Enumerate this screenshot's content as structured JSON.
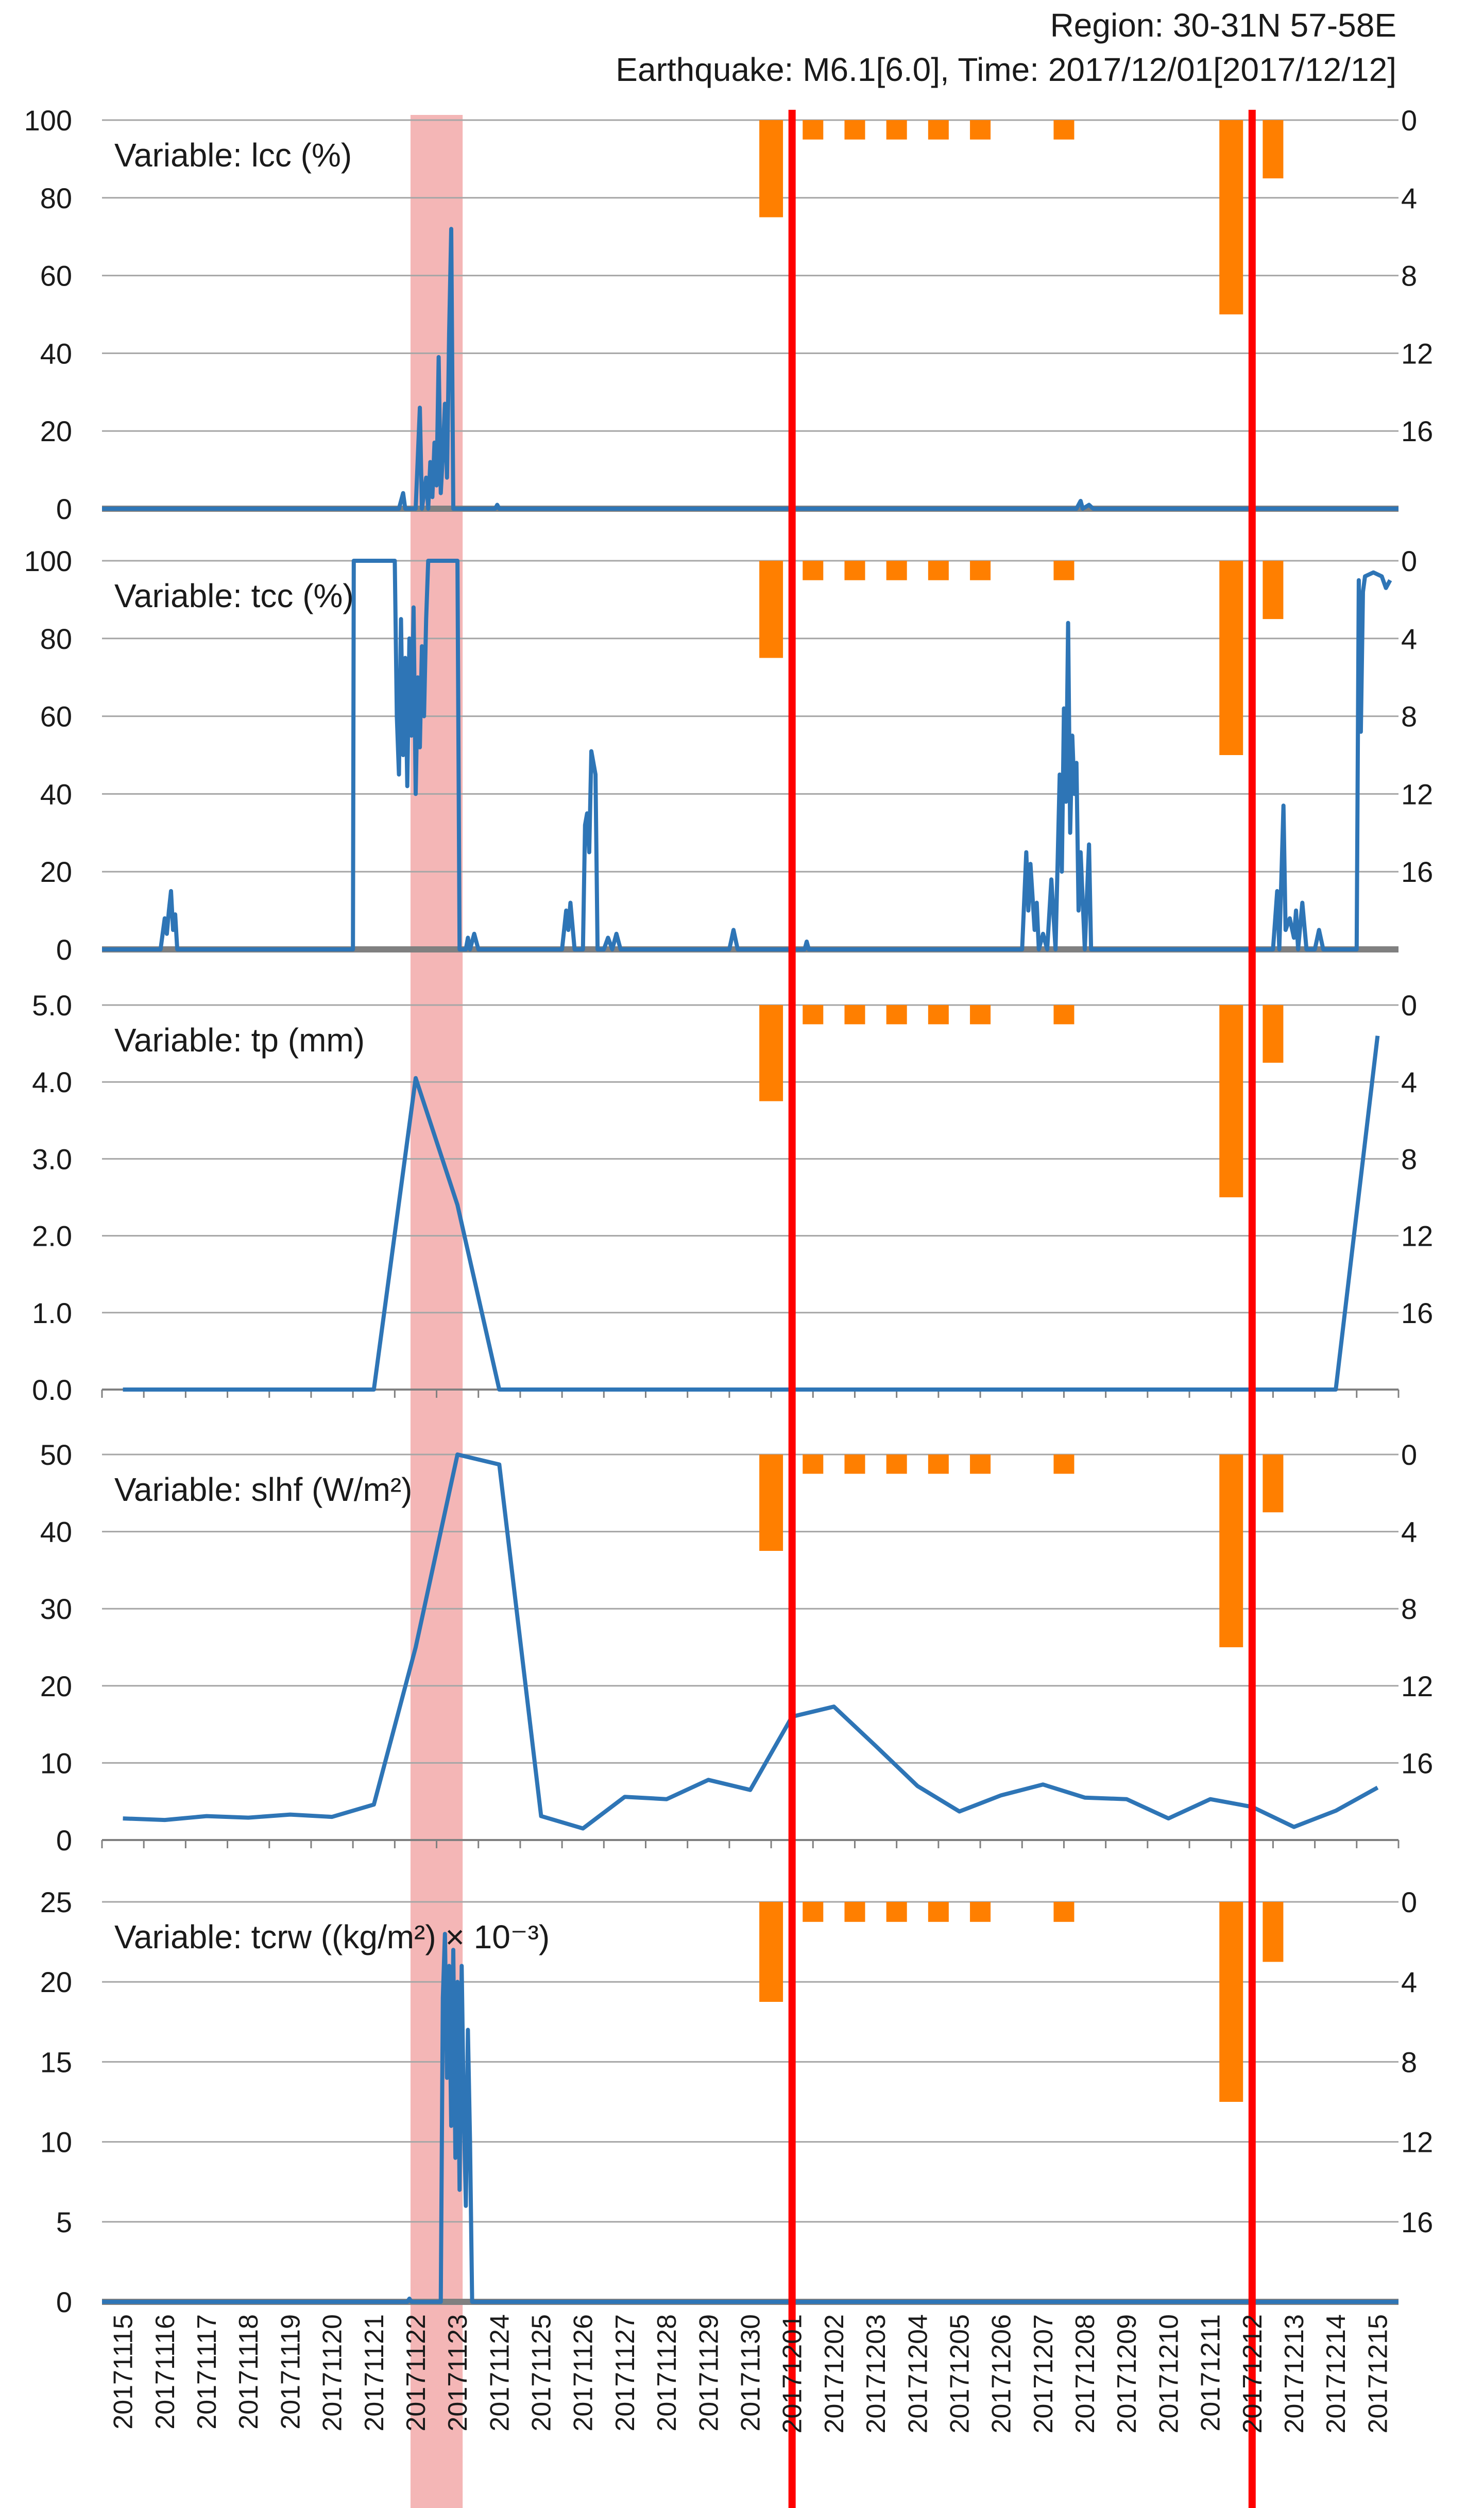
{
  "header": {
    "region": "Region: 30-31N 57-58E",
    "earthquake": "Earthquake: M6.1[6.0], Time: 2017/12/01[2017/12/12]"
  },
  "colors": {
    "line": "#2e75b6",
    "highlight": "#f4b6b6",
    "quake_line": "#ff0000",
    "bars": "#ff7f00",
    "grid": "#a6a6a6",
    "baseline": "#808080"
  },
  "chart_data": {
    "type": "line",
    "x_dates": [
      "20171115",
      "20171116",
      "20171117",
      "20171118",
      "20171119",
      "20171120",
      "20171121",
      "20171122",
      "20171123",
      "20171124",
      "20171125",
      "20171126",
      "20171127",
      "20171128",
      "20171129",
      "20171130",
      "20171201",
      "20171202",
      "20171203",
      "20171204",
      "20171205",
      "20171206",
      "20171207",
      "20171208",
      "20171209",
      "20171210",
      "20171211",
      "20171212",
      "20171213",
      "20171214",
      "20171215"
    ],
    "highlight_band": [
      "20171122",
      "20171123"
    ],
    "earthquake_dates": [
      "20171201",
      "20171212"
    ],
    "right_axis": {
      "ticks": [
        0,
        4,
        8,
        12,
        16
      ],
      "range": [
        20,
        0
      ]
    },
    "bars": [
      {
        "x": 16.0,
        "top": 0,
        "bottom": 5.0
      },
      {
        "x": 17.0,
        "top": 0,
        "bottom": 1.0
      },
      {
        "x": 18.0,
        "top": 0,
        "bottom": 1.0
      },
      {
        "x": 19.0,
        "top": 0,
        "bottom": 1.0
      },
      {
        "x": 20.0,
        "top": 0,
        "bottom": 1.0
      },
      {
        "x": 21.0,
        "top": 0,
        "bottom": 1.0
      },
      {
        "x": 23.0,
        "top": 0,
        "bottom": 1.0
      },
      {
        "x": 27.0,
        "top": 0,
        "bottom": 10.0
      },
      {
        "x": 28.0,
        "top": 0,
        "bottom": 3.0
      }
    ],
    "panels": [
      {
        "label": "Variable: lcc (%)",
        "ylim": [
          0,
          100
        ],
        "yticks": [
          "0",
          "20",
          "40",
          "60",
          "80",
          "100"
        ],
        "ytick_values": [
          0,
          20,
          40,
          60,
          80,
          100
        ],
        "series": [
          [
            0,
            0
          ],
          [
            7.1,
            0
          ],
          [
            7.2,
            4
          ],
          [
            7.25,
            0
          ],
          [
            7.5,
            0
          ],
          [
            7.6,
            26
          ],
          [
            7.65,
            0
          ],
          [
            7.75,
            8
          ],
          [
            7.8,
            0
          ],
          [
            7.85,
            12
          ],
          [
            7.9,
            3
          ],
          [
            7.95,
            17
          ],
          [
            8.0,
            6
          ],
          [
            8.05,
            39
          ],
          [
            8.1,
            4
          ],
          [
            8.15,
            14
          ],
          [
            8.2,
            27
          ],
          [
            8.25,
            8
          ],
          [
            8.3,
            45
          ],
          [
            8.35,
            72
          ],
          [
            8.4,
            0
          ],
          [
            9.4,
            0
          ],
          [
            9.45,
            1
          ],
          [
            9.5,
            0
          ],
          [
            23.3,
            0
          ],
          [
            23.4,
            2
          ],
          [
            23.45,
            0
          ],
          [
            23.6,
            1
          ],
          [
            23.7,
            0
          ],
          [
            31,
            0
          ]
        ]
      },
      {
        "label": "Variable: tcc (%)",
        "ylim": [
          0,
          100
        ],
        "yticks": [
          "0",
          "20",
          "40",
          "60",
          "80",
          "100"
        ],
        "ytick_values": [
          0,
          20,
          40,
          60,
          80,
          100
        ],
        "series": [
          [
            0,
            0
          ],
          [
            1.4,
            0
          ],
          [
            1.5,
            8
          ],
          [
            1.55,
            4
          ],
          [
            1.6,
            10
          ],
          [
            1.65,
            15
          ],
          [
            1.7,
            5
          ],
          [
            1.75,
            9
          ],
          [
            1.8,
            0
          ],
          [
            6.0,
            0
          ],
          [
            6.02,
            100
          ],
          [
            7.0,
            100
          ],
          [
            7.05,
            60
          ],
          [
            7.1,
            45
          ],
          [
            7.15,
            85
          ],
          [
            7.2,
            50
          ],
          [
            7.25,
            75
          ],
          [
            7.3,
            42
          ],
          [
            7.35,
            80
          ],
          [
            7.4,
            55
          ],
          [
            7.45,
            88
          ],
          [
            7.5,
            40
          ],
          [
            7.55,
            70
          ],
          [
            7.6,
            52
          ],
          [
            7.65,
            78
          ],
          [
            7.7,
            60
          ],
          [
            7.75,
            85
          ],
          [
            7.8,
            100
          ],
          [
            8.5,
            100
          ],
          [
            8.55,
            0
          ],
          [
            8.7,
            0
          ],
          [
            8.75,
            3
          ],
          [
            8.8,
            0
          ],
          [
            8.9,
            4
          ],
          [
            9.0,
            0
          ],
          [
            11.0,
            0
          ],
          [
            11.1,
            10
          ],
          [
            11.15,
            5
          ],
          [
            11.2,
            12
          ],
          [
            11.3,
            0
          ],
          [
            11.5,
            0
          ],
          [
            11.55,
            32
          ],
          [
            11.6,
            35
          ],
          [
            11.65,
            25
          ],
          [
            11.7,
            51
          ],
          [
            11.8,
            45
          ],
          [
            11.85,
            0
          ],
          [
            12.0,
            0
          ],
          [
            12.1,
            3
          ],
          [
            12.2,
            0
          ],
          [
            12.3,
            4
          ],
          [
            12.4,
            0
          ],
          [
            15.0,
            0
          ],
          [
            15.1,
            5
          ],
          [
            15.2,
            0
          ],
          [
            16.8,
            0
          ],
          [
            16.85,
            2
          ],
          [
            16.9,
            0
          ],
          [
            22.0,
            0
          ],
          [
            22.1,
            25
          ],
          [
            22.15,
            10
          ],
          [
            22.2,
            22
          ],
          [
            22.3,
            5
          ],
          [
            22.35,
            12
          ],
          [
            22.4,
            0
          ],
          [
            22.5,
            4
          ],
          [
            22.6,
            0
          ],
          [
            22.7,
            18
          ],
          [
            22.8,
            0
          ],
          [
            22.9,
            45
          ],
          [
            22.95,
            20
          ],
          [
            23.0,
            62
          ],
          [
            23.05,
            38
          ],
          [
            23.1,
            84
          ],
          [
            23.15,
            30
          ],
          [
            23.2,
            55
          ],
          [
            23.25,
            40
          ],
          [
            23.3,
            48
          ],
          [
            23.35,
            10
          ],
          [
            23.4,
            25
          ],
          [
            23.5,
            0
          ],
          [
            23.6,
            27
          ],
          [
            23.65,
            0
          ],
          [
            28.0,
            0
          ],
          [
            28.1,
            15
          ],
          [
            28.15,
            0
          ],
          [
            28.25,
            37
          ],
          [
            28.3,
            5
          ],
          [
            28.4,
            8
          ],
          [
            28.5,
            3
          ],
          [
            28.55,
            10
          ],
          [
            28.6,
            0
          ],
          [
            28.7,
            12
          ],
          [
            28.8,
            0
          ],
          [
            29.0,
            0
          ],
          [
            29.1,
            5
          ],
          [
            29.2,
            0
          ],
          [
            30.0,
            0
          ],
          [
            30.05,
            95
          ],
          [
            30.1,
            56
          ],
          [
            30.15,
            92
          ],
          [
            30.2,
            96
          ],
          [
            30.4,
            97
          ],
          [
            30.6,
            96
          ],
          [
            30.7,
            93
          ],
          [
            30.8,
            95
          ]
        ]
      },
      {
        "label": "Variable: tp (mm)",
        "ylim": [
          0,
          5
        ],
        "yticks": [
          "0.0",
          "1.0",
          "2.0",
          "3.0",
          "4.0",
          "5.0"
        ],
        "ytick_values": [
          0,
          1,
          2,
          3,
          4,
          5
        ],
        "series": [
          [
            0.5,
            0
          ],
          [
            6.5,
            0
          ],
          [
            7.5,
            4.05
          ],
          [
            8.5,
            2.4
          ],
          [
            9.5,
            0
          ],
          [
            29.5,
            0
          ],
          [
            30.5,
            4.6
          ]
        ]
      },
      {
        "label": "Variable: slhf (W/m²)",
        "ylim": [
          0,
          50
        ],
        "yticks": [
          "0",
          "10",
          "20",
          "30",
          "40",
          "50"
        ],
        "ytick_values": [
          0,
          10,
          20,
          30,
          40,
          50
        ],
        "series": [
          [
            0.5,
            2.8
          ],
          [
            1.5,
            2.6
          ],
          [
            2.5,
            3.1
          ],
          [
            3.5,
            2.9
          ],
          [
            4.5,
            3.3
          ],
          [
            5.5,
            3.0
          ],
          [
            6.5,
            4.6
          ],
          [
            7.5,
            25
          ],
          [
            8.5,
            50
          ],
          [
            9.5,
            48.7
          ],
          [
            10.5,
            3.1
          ],
          [
            11.5,
            1.5
          ],
          [
            12.5,
            5.6
          ],
          [
            13.5,
            5.3
          ],
          [
            14.5,
            7.8
          ],
          [
            15.5,
            6.5
          ],
          [
            16.5,
            16
          ],
          [
            17.5,
            17.3
          ],
          [
            18.5,
            12.2
          ],
          [
            19.5,
            7.0
          ],
          [
            20.5,
            3.7
          ],
          [
            21.5,
            5.8
          ],
          [
            22.5,
            7.2
          ],
          [
            23.5,
            5.5
          ],
          [
            24.5,
            5.3
          ],
          [
            25.5,
            2.8
          ],
          [
            26.5,
            5.3
          ],
          [
            27.5,
            4.3
          ],
          [
            28.5,
            1.7
          ],
          [
            29.5,
            3.8
          ],
          [
            30.5,
            6.8
          ]
        ]
      },
      {
        "label": "Variable: tcrw ((kg/m²) × 10⁻³)",
        "ylim": [
          0,
          25
        ],
        "yticks": [
          "0",
          "5",
          "10",
          "15",
          "20",
          "25"
        ],
        "ytick_values": [
          0,
          5,
          10,
          15,
          20,
          25
        ],
        "series": [
          [
            0,
            0
          ],
          [
            7.3,
            0
          ],
          [
            7.35,
            0.2
          ],
          [
            7.4,
            0
          ],
          [
            8.1,
            0
          ],
          [
            8.15,
            19
          ],
          [
            8.2,
            23
          ],
          [
            8.25,
            14
          ],
          [
            8.3,
            21
          ],
          [
            8.35,
            11
          ],
          [
            8.4,
            22
          ],
          [
            8.45,
            9
          ],
          [
            8.5,
            20
          ],
          [
            8.55,
            7
          ],
          [
            8.6,
            21
          ],
          [
            8.65,
            12
          ],
          [
            8.7,
            6
          ],
          [
            8.75,
            17
          ],
          [
            8.8,
            10
          ],
          [
            8.85,
            0
          ],
          [
            31,
            0
          ]
        ]
      }
    ]
  }
}
